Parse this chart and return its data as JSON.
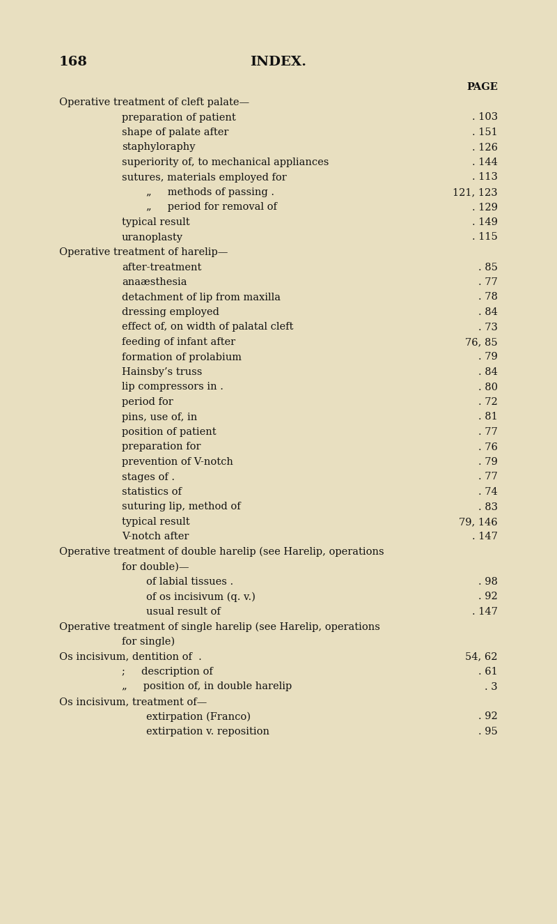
{
  "bg_color": "#e8dfc0",
  "page_number": "168",
  "page_title": "INDEX.",
  "page_header": "PAGE",
  "font_color": "#111111",
  "figwidth": 8.0,
  "figheight": 13.26,
  "dpi": 100,
  "lines": [
    {
      "indent": 0,
      "text": "Operative treatment of cleft palate—",
      "page": "",
      "dots": false
    },
    {
      "indent": 1,
      "text": "preparation of patient",
      "page": ". 103",
      "dots": true
    },
    {
      "indent": 1,
      "text": "shape of palate after",
      "page": ". 151",
      "dots": true
    },
    {
      "indent": 1,
      "text": "staphyloraphy",
      "page": ". 126",
      "dots": true
    },
    {
      "indent": 1,
      "text": "superiority of, to mechanical appliances",
      "page": ". 144",
      "dots": true
    },
    {
      "indent": 1,
      "text": "sutures, materials employed for",
      "page": ". 113",
      "dots": true
    },
    {
      "indent": 2,
      "text": "„     methods of passing .",
      "page": "121, 123",
      "dots": false
    },
    {
      "indent": 2,
      "text": "„     period for removal of",
      "page": ". 129",
      "dots": true
    },
    {
      "indent": 1,
      "text": "typical result",
      "page": ". 149",
      "dots": true
    },
    {
      "indent": 1,
      "text": "uranoplasty",
      "page": ". 115",
      "dots": true
    },
    {
      "indent": 0,
      "text": "Operative treatment of harelip—",
      "page": "",
      "dots": false
    },
    {
      "indent": 1,
      "text": "after-treatment",
      "page": ". 85",
      "dots": true
    },
    {
      "indent": 1,
      "text": "anaæsthesia",
      "page": ". 77",
      "dots": true
    },
    {
      "indent": 1,
      "text": "detachment of lip from maxilla",
      "page": ". 78",
      "dots": true
    },
    {
      "indent": 1,
      "text": "dressing employed",
      "page": ". 84",
      "dots": true
    },
    {
      "indent": 1,
      "text": "effect of, on width of palatal cleft",
      "page": ". 73",
      "dots": true
    },
    {
      "indent": 1,
      "text": "feeding of infant after",
      "page": "76, 85",
      "dots": false
    },
    {
      "indent": 1,
      "text": "formation of prolabium",
      "page": ". 79",
      "dots": true
    },
    {
      "indent": 1,
      "text": "Hainsby’s truss",
      "page": ". 84",
      "dots": true
    },
    {
      "indent": 1,
      "text": "lip compressors in .",
      "page": ". 80",
      "dots": true
    },
    {
      "indent": 1,
      "text": "period for",
      "page": ". 72",
      "dots": true
    },
    {
      "indent": 1,
      "text": "pins, use of, in",
      "page": ". 81",
      "dots": true
    },
    {
      "indent": 1,
      "text": "position of patient",
      "page": ". 77",
      "dots": true
    },
    {
      "indent": 1,
      "text": "preparation for",
      "page": ". 76",
      "dots": true
    },
    {
      "indent": 1,
      "text": "prevention of V-notch",
      "page": ". 79",
      "dots": true
    },
    {
      "indent": 1,
      "text": "stages of .",
      "page": ". 77",
      "dots": true
    },
    {
      "indent": 1,
      "text": "statistics of",
      "page": ". 74",
      "dots": true
    },
    {
      "indent": 1,
      "text": "suturing lip, method of",
      "page": ". 83",
      "dots": true
    },
    {
      "indent": 1,
      "text": "typical result",
      "page": "79, 146",
      "dots": false
    },
    {
      "indent": 1,
      "text": "V-notch after",
      "page": ". 147",
      "dots": true
    },
    {
      "indent": 0,
      "text": "Operative treatment of double harelip (see Harelip, operations",
      "page": "",
      "dots": false
    },
    {
      "indent": 1,
      "text": "for double)—",
      "page": "",
      "dots": false
    },
    {
      "indent": 2,
      "text": "of labial tissues .",
      "page": ". 98",
      "dots": true
    },
    {
      "indent": 2,
      "text": "of os incisivum (q. v.)",
      "page": ". 92",
      "dots": true
    },
    {
      "indent": 2,
      "text": "usual result of",
      "page": ". 147",
      "dots": true
    },
    {
      "indent": 0,
      "text": "Operative treatment of single harelip (see Harelip, operations",
      "page": "",
      "dots": false
    },
    {
      "indent": 1,
      "text": "for single)",
      "page": "",
      "dots": false
    },
    {
      "indent": 0,
      "text": "Os incisivum, dentition of  .",
      "page": "54, 62",
      "dots": false
    },
    {
      "indent": 1,
      "text": ";     description of",
      "page": ". 61",
      "dots": true
    },
    {
      "indent": 1,
      "text": "„     position of, in double harelip",
      "page": ". 3",
      "dots": true
    },
    {
      "indent": 0,
      "text": "Os incisivum, treatment of—",
      "page": "",
      "dots": false
    },
    {
      "indent": 2,
      "text": "extirpation (Franco)",
      "page": ". 92",
      "dots": true
    },
    {
      "indent": 2,
      "text": "extirpation v. reposition",
      "page": ". 95",
      "dots": true
    }
  ]
}
